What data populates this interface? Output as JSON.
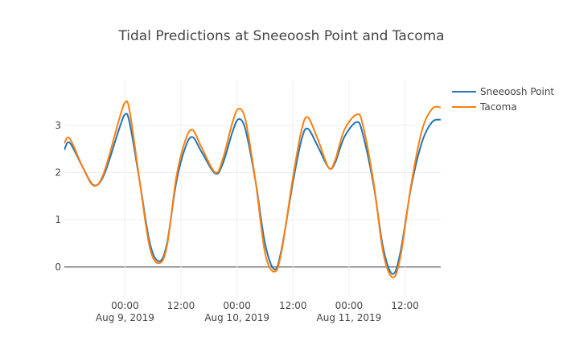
{
  "chart_data": {
    "type": "line",
    "title": "Tidal Predictions at Sneeoosh Point and Tacoma",
    "xlabel": "",
    "ylabel": "",
    "x_range": [
      "2019-08-08T11:00",
      "2019-08-11T19:40"
    ],
    "ylim": [
      -0.65,
      3.95
    ],
    "x_ticks": [
      {
        "time": "2019-08-09T00:00",
        "label": "00:00",
        "date_label": "Aug 9, 2019"
      },
      {
        "time": "2019-08-09T12:00",
        "label": "12:00",
        "date_label": ""
      },
      {
        "time": "2019-08-10T00:00",
        "label": "00:00",
        "date_label": "Aug 10, 2019"
      },
      {
        "time": "2019-08-10T12:00",
        "label": "12:00",
        "date_label": ""
      },
      {
        "time": "2019-08-11T00:00",
        "label": "00:00",
        "date_label": "Aug 11, 2019"
      },
      {
        "time": "2019-08-11T12:00",
        "label": "12:00",
        "date_label": ""
      }
    ],
    "y_ticks": [
      0,
      1,
      2,
      3
    ],
    "grid": true,
    "legend_position": "top-right",
    "series": [
      {
        "name": "Sneeoosh Point",
        "color": "#1f77b4",
        "points": [
          [
            "2019-08-08T11:00",
            2.48
          ],
          [
            "2019-08-08T12:10",
            2.63
          ],
          [
            "2019-08-08T15:00",
            2.1
          ],
          [
            "2019-08-08T17:20",
            1.73
          ],
          [
            "2019-08-08T19:30",
            1.95
          ],
          [
            "2019-08-08T22:40",
            2.9
          ],
          [
            "2019-08-09T00:00",
            3.23
          ],
          [
            "2019-08-09T01:00",
            3.05
          ],
          [
            "2019-08-09T03:10",
            1.8
          ],
          [
            "2019-08-09T05:20",
            0.5
          ],
          [
            "2019-08-09T07:20",
            0.12
          ],
          [
            "2019-08-09T09:00",
            0.5
          ],
          [
            "2019-08-09T11:00",
            1.8
          ],
          [
            "2019-08-09T13:00",
            2.55
          ],
          [
            "2019-08-09T14:30",
            2.75
          ],
          [
            "2019-08-09T16:20",
            2.45
          ],
          [
            "2019-08-09T19:20",
            1.98
          ],
          [
            "2019-08-09T21:00",
            2.2
          ],
          [
            "2019-08-09T23:00",
            2.85
          ],
          [
            "2019-08-10T00:20",
            3.13
          ],
          [
            "2019-08-10T01:50",
            2.9
          ],
          [
            "2019-08-10T04:00",
            1.8
          ],
          [
            "2019-08-10T06:00",
            0.5
          ],
          [
            "2019-08-10T08:00",
            -0.05
          ],
          [
            "2019-08-10T09:30",
            0.35
          ],
          [
            "2019-08-10T12:00",
            1.8
          ],
          [
            "2019-08-10T13:50",
            2.7
          ],
          [
            "2019-08-10T15:10",
            2.93
          ],
          [
            "2019-08-10T17:20",
            2.55
          ],
          [
            "2019-08-10T19:40",
            2.1
          ],
          [
            "2019-08-10T21:00",
            2.2
          ],
          [
            "2019-08-10T23:00",
            2.75
          ],
          [
            "2019-08-11T01:40",
            3.07
          ],
          [
            "2019-08-11T03:00",
            2.8
          ],
          [
            "2019-08-11T05:20",
            1.7
          ],
          [
            "2019-08-11T07:20",
            0.4
          ],
          [
            "2019-08-11T09:20",
            -0.15
          ],
          [
            "2019-08-11T11:00",
            0.3
          ],
          [
            "2019-08-11T13:20",
            1.7
          ],
          [
            "2019-08-11T15:40",
            2.65
          ],
          [
            "2019-08-11T17:50",
            3.07
          ],
          [
            "2019-08-11T19:40",
            3.12
          ]
        ]
      },
      {
        "name": "Tacoma",
        "color": "#ff7f0e",
        "points": [
          [
            "2019-08-08T11:00",
            2.62
          ],
          [
            "2019-08-08T12:10",
            2.72
          ],
          [
            "2019-08-08T15:00",
            2.1
          ],
          [
            "2019-08-08T17:20",
            1.72
          ],
          [
            "2019-08-08T19:30",
            2.0
          ],
          [
            "2019-08-08T22:40",
            3.1
          ],
          [
            "2019-08-09T00:00",
            3.48
          ],
          [
            "2019-08-09T01:00",
            3.3
          ],
          [
            "2019-08-09T03:10",
            1.8
          ],
          [
            "2019-08-09T05:20",
            0.4
          ],
          [
            "2019-08-09T07:20",
            0.08
          ],
          [
            "2019-08-09T09:00",
            0.45
          ],
          [
            "2019-08-09T11:00",
            1.9
          ],
          [
            "2019-08-09T13:00",
            2.7
          ],
          [
            "2019-08-09T14:30",
            2.9
          ],
          [
            "2019-08-09T16:20",
            2.55
          ],
          [
            "2019-08-09T19:20",
            2.0
          ],
          [
            "2019-08-09T21:00",
            2.3
          ],
          [
            "2019-08-09T23:00",
            3.05
          ],
          [
            "2019-08-10T00:20",
            3.35
          ],
          [
            "2019-08-10T01:50",
            3.1
          ],
          [
            "2019-08-10T04:00",
            1.8
          ],
          [
            "2019-08-10T06:00",
            0.3
          ],
          [
            "2019-08-10T08:00",
            -0.1
          ],
          [
            "2019-08-10T09:30",
            0.3
          ],
          [
            "2019-08-10T12:00",
            1.9
          ],
          [
            "2019-08-10T13:50",
            2.9
          ],
          [
            "2019-08-10T15:10",
            3.17
          ],
          [
            "2019-08-10T17:20",
            2.7
          ],
          [
            "2019-08-10T19:40",
            2.1
          ],
          [
            "2019-08-10T21:00",
            2.25
          ],
          [
            "2019-08-10T23:00",
            2.9
          ],
          [
            "2019-08-11T01:40",
            3.23
          ],
          [
            "2019-08-11T03:00",
            3.0
          ],
          [
            "2019-08-11T05:20",
            1.75
          ],
          [
            "2019-08-11T07:20",
            0.3
          ],
          [
            "2019-08-11T09:20",
            -0.22
          ],
          [
            "2019-08-11T11:00",
            0.2
          ],
          [
            "2019-08-11T13:20",
            1.75
          ],
          [
            "2019-08-11T15:40",
            2.9
          ],
          [
            "2019-08-11T17:50",
            3.35
          ],
          [
            "2019-08-11T19:40",
            3.38
          ]
        ]
      }
    ]
  }
}
